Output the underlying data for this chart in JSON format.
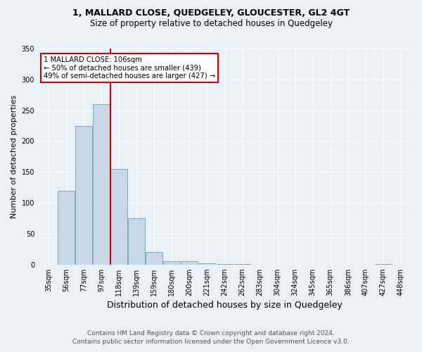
{
  "title1": "1, MALLARD CLOSE, QUEDGELEY, GLOUCESTER, GL2 4GT",
  "title2": "Size of property relative to detached houses in Quedgeley",
  "xlabel": "Distribution of detached houses by size in Quedgeley",
  "ylabel": "Number of detached properties",
  "footer1": "Contains HM Land Registry data © Crown copyright and database right 2024.",
  "footer2": "Contains public sector information licensed under the Open Government Licence v3.0.",
  "bin_labels": [
    "35sqm",
    "56sqm",
    "77sqm",
    "97sqm",
    "118sqm",
    "139sqm",
    "159sqm",
    "180sqm",
    "200sqm",
    "221sqm",
    "242sqm",
    "262sqm",
    "283sqm",
    "304sqm",
    "324sqm",
    "345sqm",
    "365sqm",
    "386sqm",
    "407sqm",
    "427sqm",
    "448sqm"
  ],
  "bar_values": [
    0,
    120,
    225,
    260,
    155,
    75,
    20,
    5,
    5,
    2,
    1,
    1,
    0,
    0,
    0,
    0,
    0,
    0,
    0,
    1,
    0
  ],
  "bar_color": "#c8d8e8",
  "bar_edge_color": "#7aaabb",
  "vline_x_index": 3.5,
  "vline_color": "#cc0000",
  "annotation_line1": "1 MALLARD CLOSE: 106sqm",
  "annotation_line2": "← 50% of detached houses are smaller (439)",
  "annotation_line3": "49% of semi-detached houses are larger (427) →",
  "annotation_box_color": "#ffffff",
  "annotation_box_edge": "#cc0000",
  "ylim": [
    0,
    350
  ],
  "yticks": [
    0,
    50,
    100,
    150,
    200,
    250,
    300,
    350
  ],
  "bg_color": "#e8f0f8",
  "grid_color": "#ffffff",
  "title1_fontsize": 9,
  "title2_fontsize": 8.5,
  "ylabel_fontsize": 8,
  "xlabel_fontsize": 9,
  "tick_fontsize": 7,
  "footer_fontsize": 6.5
}
